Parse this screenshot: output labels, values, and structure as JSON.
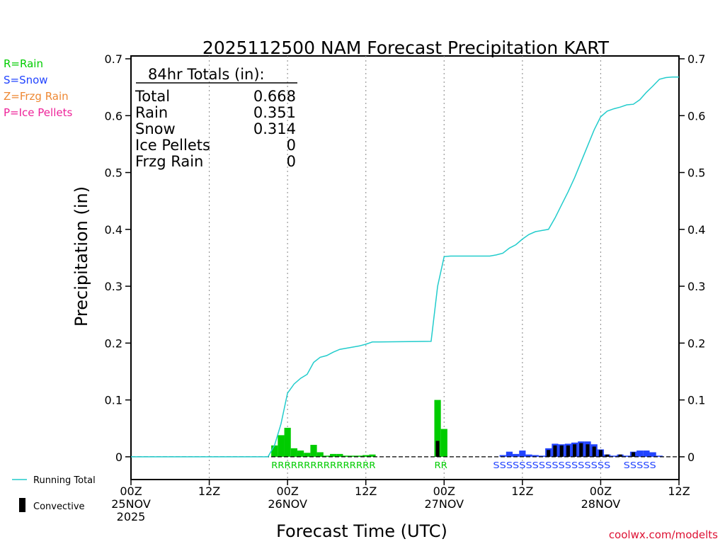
{
  "title": "2025112500 NAM Forecast Precipitation KART",
  "colors": {
    "rain": "#00cc00",
    "snow": "#2244ff",
    "frzg_rain": "#ee8833",
    "ice_pellets": "#ee2299",
    "running_total": "#22cccc",
    "convective": "#000000",
    "credit": "#dd1133"
  },
  "ptype_legend": [
    {
      "label": "R=Rain",
      "color_key": "rain"
    },
    {
      "label": "S=Snow",
      "color_key": "snow"
    },
    {
      "label": "Z=Frzg Rain",
      "color_key": "frzg_rain"
    },
    {
      "label": "P=Ice Pellets",
      "color_key": "ice_pellets"
    }
  ],
  "totals": {
    "header": "84hr Totals (in):",
    "rows": [
      {
        "label": "Total",
        "value": "0.668"
      },
      {
        "label": "Rain",
        "value": "0.351"
      },
      {
        "label": "Snow",
        "value": "0.314"
      },
      {
        "label": "Ice Pellets",
        "value": "0"
      },
      {
        "label": "Frzg Rain",
        "value": "0"
      }
    ]
  },
  "series_legend": {
    "running_total": "Running Total",
    "convective": "Convective"
  },
  "ylabel": "Precipitation (in)",
  "xlabel": "Forecast Time (UTC)",
  "credit": "coolwx.com/modelts",
  "chart_data": {
    "type": "bar",
    "x_unit": "forecast hour",
    "xlim": [
      0,
      84
    ],
    "ylim": [
      -0.04,
      0.705
    ],
    "yticks": [
      "0.7",
      "0.6",
      "0.5",
      "0.4",
      "0.3",
      "0.2",
      "0.1",
      "0"
    ],
    "ytick_values": [
      0.7,
      0.6,
      0.5,
      0.4,
      0.3,
      0.2,
      0.1,
      0
    ],
    "xticks": [
      {
        "hour": 0,
        "lines": [
          "00Z",
          "25NOV",
          "2025"
        ]
      },
      {
        "hour": 12,
        "lines": [
          "12Z"
        ]
      },
      {
        "hour": 24,
        "lines": [
          "00Z",
          "26NOV"
        ]
      },
      {
        "hour": 36,
        "lines": [
          "12Z"
        ]
      },
      {
        "hour": 48,
        "lines": [
          "00Z",
          "27NOV"
        ]
      },
      {
        "hour": 60,
        "lines": [
          "12Z"
        ]
      },
      {
        "hour": 72,
        "lines": [
          "00Z",
          "28NOV"
        ]
      },
      {
        "hour": 84,
        "lines": [
          "12Z"
        ]
      }
    ],
    "gridlines_at_hours": [
      12,
      24,
      36,
      48,
      60,
      72
    ],
    "bar_width_hours": 1,
    "precip_bars": [
      {
        "hour": 22,
        "value": 0.02,
        "type": "rain"
      },
      {
        "hour": 23,
        "value": 0.038,
        "type": "rain"
      },
      {
        "hour": 24,
        "value": 0.051,
        "type": "rain"
      },
      {
        "hour": 25,
        "value": 0.015,
        "type": "rain"
      },
      {
        "hour": 26,
        "value": 0.011,
        "type": "rain"
      },
      {
        "hour": 27,
        "value": 0.007,
        "type": "rain"
      },
      {
        "hour": 28,
        "value": 0.021,
        "type": "rain"
      },
      {
        "hour": 29,
        "value": 0.008,
        "type": "rain"
      },
      {
        "hour": 30,
        "value": 0.002,
        "type": "rain"
      },
      {
        "hour": 31,
        "value": 0.005,
        "type": "rain"
      },
      {
        "hour": 32,
        "value": 0.005,
        "type": "rain"
      },
      {
        "hour": 33,
        "value": 0.002,
        "type": "rain"
      },
      {
        "hour": 34,
        "value": 0.002,
        "type": "rain"
      },
      {
        "hour": 35,
        "value": 0.002,
        "type": "rain"
      },
      {
        "hour": 36,
        "value": 0.003,
        "type": "rain"
      },
      {
        "hour": 37,
        "value": 0.004,
        "type": "rain"
      },
      {
        "hour": 47,
        "value": 0.1,
        "type": "rain"
      },
      {
        "hour": 48,
        "value": 0.049,
        "type": "rain"
      },
      {
        "hour": 57,
        "value": 0.003,
        "type": "snow"
      },
      {
        "hour": 58,
        "value": 0.009,
        "type": "snow"
      },
      {
        "hour": 59,
        "value": 0.005,
        "type": "snow"
      },
      {
        "hour": 60,
        "value": 0.011,
        "type": "snow"
      },
      {
        "hour": 61,
        "value": 0.004,
        "type": "snow"
      },
      {
        "hour": 62,
        "value": 0.003,
        "type": "snow"
      },
      {
        "hour": 63,
        "value": 0.002,
        "type": "snow"
      },
      {
        "hour": 64,
        "value": 0.015,
        "type": "snow"
      },
      {
        "hour": 65,
        "value": 0.023,
        "type": "snow"
      },
      {
        "hour": 66,
        "value": 0.022,
        "type": "snow"
      },
      {
        "hour": 67,
        "value": 0.023,
        "type": "snow"
      },
      {
        "hour": 68,
        "value": 0.025,
        "type": "snow"
      },
      {
        "hour": 69,
        "value": 0.027,
        "type": "snow"
      },
      {
        "hour": 70,
        "value": 0.027,
        "type": "snow"
      },
      {
        "hour": 71,
        "value": 0.022,
        "type": "snow"
      },
      {
        "hour": 72,
        "value": 0.013,
        "type": "snow"
      },
      {
        "hour": 73,
        "value": 0.004,
        "type": "snow"
      },
      {
        "hour": 74,
        "value": 0.002,
        "type": "snow"
      },
      {
        "hour": 75,
        "value": 0.004,
        "type": "snow"
      },
      {
        "hour": 76,
        "value": 0.002,
        "type": "snow"
      },
      {
        "hour": 77,
        "value": 0.009,
        "type": "snow"
      },
      {
        "hour": 78,
        "value": 0.011,
        "type": "snow"
      },
      {
        "hour": 79,
        "value": 0.011,
        "type": "snow"
      },
      {
        "hour": 80,
        "value": 0.008,
        "type": "snow"
      },
      {
        "hour": 81,
        "value": 0.002,
        "type": "snow"
      }
    ],
    "convective_bars": [
      {
        "hour": 47,
        "value": 0.028
      },
      {
        "hour": 64,
        "value": 0.012
      },
      {
        "hour": 65,
        "value": 0.02
      },
      {
        "hour": 66,
        "value": 0.02
      },
      {
        "hour": 67,
        "value": 0.02
      },
      {
        "hour": 68,
        "value": 0.022
      },
      {
        "hour": 69,
        "value": 0.024
      },
      {
        "hour": 70,
        "value": 0.022
      },
      {
        "hour": 71,
        "value": 0.018
      },
      {
        "hour": 72,
        "value": 0.012
      },
      {
        "hour": 73,
        "value": 0.004
      },
      {
        "hour": 75,
        "value": 0.004
      },
      {
        "hour": 77,
        "value": 0.008
      }
    ],
    "running_total": {
      "hours": [
        0,
        21,
        22,
        23,
        24,
        25,
        26,
        27,
        28,
        29,
        30,
        31,
        32,
        33,
        34,
        35,
        36,
        37,
        38,
        46,
        47,
        48,
        49,
        55,
        56,
        57,
        58,
        59,
        60,
        61,
        62,
        63,
        64,
        65,
        66,
        67,
        68,
        69,
        70,
        71,
        72,
        73,
        74,
        75,
        76,
        77,
        78,
        79,
        80,
        81,
        82,
        83,
        84
      ],
      "values": [
        0,
        0,
        0.02,
        0.058,
        0.112,
        0.128,
        0.138,
        0.145,
        0.166,
        0.175,
        0.178,
        0.184,
        0.189,
        0.191,
        0.193,
        0.195,
        0.198,
        0.202,
        0.202,
        0.203,
        0.3,
        0.352,
        0.353,
        0.353,
        0.355,
        0.358,
        0.367,
        0.373,
        0.383,
        0.391,
        0.396,
        0.398,
        0.4,
        0.42,
        0.443,
        0.466,
        0.491,
        0.519,
        0.547,
        0.575,
        0.598,
        0.608,
        0.612,
        0.615,
        0.619,
        0.62,
        0.628,
        0.641,
        0.652,
        0.664,
        0.667,
        0.668,
        0.668
      ]
    },
    "ptype_label_groups": [
      {
        "start_hour": 22,
        "end_hour": 37,
        "text": "RRRRRRRRRRRRRRRR",
        "color_key": "rain"
      },
      {
        "start_hour": 47,
        "end_hour": 48,
        "text": "RR",
        "color_key": "rain"
      },
      {
        "start_hour": 56,
        "end_hour": 73,
        "text": "SSSSSSSSSSSSSSSSSS",
        "color_key": "snow"
      },
      {
        "start_hour": 76,
        "end_hour": 80,
        "text": "SSSSS",
        "color_key": "snow"
      }
    ]
  }
}
